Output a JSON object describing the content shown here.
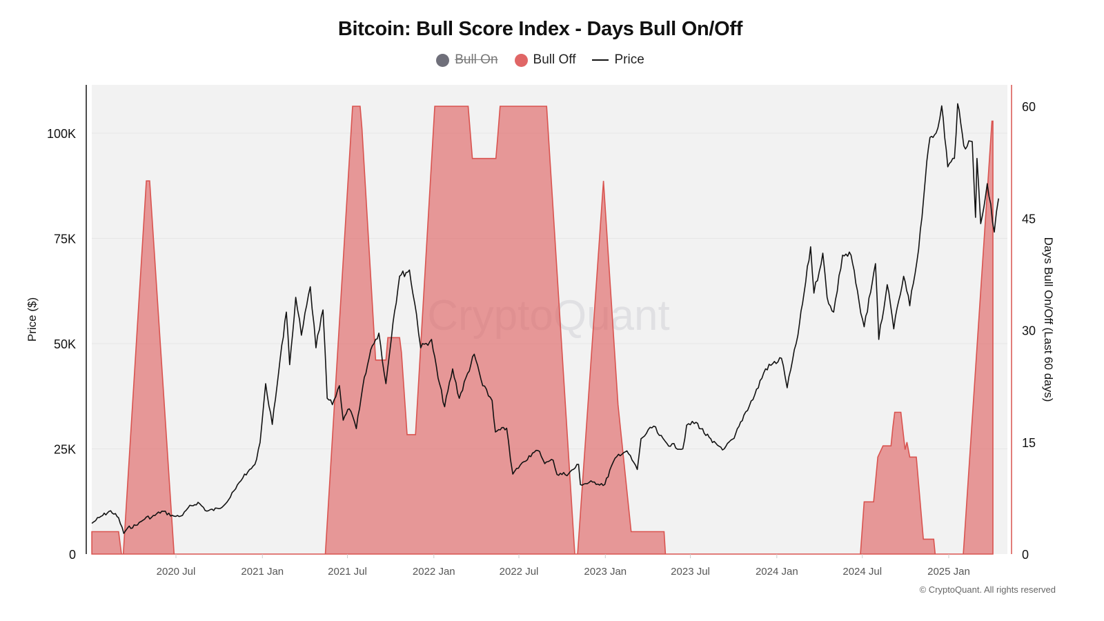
{
  "chart_data": {
    "type": "area+line",
    "title": "Bitcoin: Bull Score Index - Days Bull On/Off",
    "legend": {
      "placement": "top-center",
      "entries": [
        {
          "name": "Bull On",
          "color": "#6f6f7a",
          "hidden": true
        },
        {
          "name": "Bull Off",
          "color": "#e06666",
          "hidden": false
        },
        {
          "name": "Price",
          "color": "#111111",
          "hidden": false
        }
      ]
    },
    "y_left": {
      "label": "Price ($)",
      "range": [
        0,
        110000
      ],
      "ticks": [
        0,
        25000,
        50000,
        75000,
        100000
      ],
      "tick_labels": [
        "0",
        "25K",
        "50K",
        "75K",
        "100K"
      ]
    },
    "y_right": {
      "label": "Days Bull On/Off (Last 60 days)",
      "range": [
        0,
        62.5
      ],
      "ticks": [
        0,
        15,
        30,
        45,
        60
      ],
      "tick_labels": [
        "0",
        "15",
        "30",
        "45",
        "60"
      ],
      "color": "#d9534f"
    },
    "x_axis": {
      "range": [
        "2020-01-04",
        "2025-04-30"
      ],
      "ticks": [
        "2020-07-01",
        "2021-01-01",
        "2021-07-01",
        "2022-01-01",
        "2022-07-01",
        "2023-01-01",
        "2023-07-01",
        "2024-01-01",
        "2024-07-01",
        "2025-01-01"
      ],
      "tick_labels": [
        "2020 Jul",
        "2021 Jan",
        "2021 Jul",
        "2022 Jan",
        "2022 Jul",
        "2023 Jan",
        "2023 Jul",
        "2024 Jan",
        "2024 Jul",
        "2025 Jan"
      ]
    },
    "grid": true,
    "watermark": "CryptoQuant",
    "series": [
      {
        "name": "Bull Off",
        "axis": "right",
        "kind": "area",
        "color": "#e06666",
        "points": [
          [
            "2020-01-04",
            3
          ],
          [
            "2020-03-01",
            3
          ],
          [
            "2020-03-07",
            0
          ],
          [
            "2020-03-11",
            0
          ],
          [
            "2020-04-29",
            50
          ],
          [
            "2020-05-06",
            50
          ],
          [
            "2020-06-27",
            0
          ],
          [
            "2021-05-15",
            0
          ],
          [
            "2021-07-12",
            60
          ],
          [
            "2021-07-28",
            60
          ],
          [
            "2021-08-01",
            57
          ],
          [
            "2021-08-30",
            26
          ],
          [
            "2021-09-21",
            26
          ],
          [
            "2021-09-25",
            29
          ],
          [
            "2021-10-20",
            29
          ],
          [
            "2021-10-24",
            27
          ],
          [
            "2021-11-05",
            16
          ],
          [
            "2021-11-23",
            16
          ],
          [
            "2022-01-03",
            60
          ],
          [
            "2022-03-15",
            60
          ],
          [
            "2022-03-24",
            53
          ],
          [
            "2022-05-13",
            53
          ],
          [
            "2022-05-17",
            56
          ],
          [
            "2022-05-22",
            60
          ],
          [
            "2022-08-29",
            60
          ],
          [
            "2022-10-28",
            0
          ],
          [
            "2022-11-03",
            0
          ],
          [
            "2022-12-28",
            50
          ],
          [
            "2023-01-28",
            20
          ],
          [
            "2023-02-25",
            3
          ],
          [
            "2023-05-06",
            3
          ],
          [
            "2023-05-09",
            0
          ],
          [
            "2024-06-27",
            0
          ],
          [
            "2024-07-05",
            7
          ],
          [
            "2024-07-25",
            7
          ],
          [
            "2024-08-03",
            13
          ],
          [
            "2024-08-14",
            14.5
          ],
          [
            "2024-08-31",
            14.5
          ],
          [
            "2024-09-04",
            17
          ],
          [
            "2024-09-08",
            19
          ],
          [
            "2024-09-21",
            19
          ],
          [
            "2024-09-30",
            14
          ],
          [
            "2024-10-04",
            15
          ],
          [
            "2024-10-10",
            13
          ],
          [
            "2024-10-24",
            13
          ],
          [
            "2024-11-08",
            2
          ],
          [
            "2024-11-30",
            2
          ],
          [
            "2024-12-03",
            0
          ],
          [
            "2025-02-01",
            0
          ],
          [
            "2025-04-03",
            58
          ],
          [
            "2025-04-05",
            58
          ]
        ]
      },
      {
        "name": "Price",
        "axis": "left",
        "kind": "line",
        "color": "#111111",
        "points": [
          [
            "2020-01-04",
            7300
          ],
          [
            "2020-01-20",
            8700
          ],
          [
            "2020-02-13",
            10300
          ],
          [
            "2020-03-01",
            8600
          ],
          [
            "2020-03-12",
            4900
          ],
          [
            "2020-03-20",
            6200
          ],
          [
            "2020-04-10",
            6900
          ],
          [
            "2020-04-29",
            8800
          ],
          [
            "2020-05-10",
            8700
          ],
          [
            "2020-06-01",
            10200
          ],
          [
            "2020-06-27",
            9000
          ],
          [
            "2020-07-15",
            9200
          ],
          [
            "2020-07-27",
            11000
          ],
          [
            "2020-08-17",
            12300
          ],
          [
            "2020-09-05",
            10200
          ],
          [
            "2020-09-30",
            10800
          ],
          [
            "2020-10-21",
            12900
          ],
          [
            "2020-11-05",
            15500
          ],
          [
            "2020-11-24",
            19000
          ],
          [
            "2020-12-01",
            19500
          ],
          [
            "2020-12-16",
            21300
          ],
          [
            "2020-12-27",
            26500
          ],
          [
            "2021-01-08",
            40500
          ],
          [
            "2021-01-22",
            30800
          ],
          [
            "2021-02-08",
            46500
          ],
          [
            "2021-02-21",
            57500
          ],
          [
            "2021-02-28",
            45000
          ],
          [
            "2021-03-13",
            61000
          ],
          [
            "2021-03-25",
            52000
          ],
          [
            "2021-04-13",
            63500
          ],
          [
            "2021-04-25",
            49000
          ],
          [
            "2021-05-10",
            58000
          ],
          [
            "2021-05-19",
            37000
          ],
          [
            "2021-05-30",
            35500
          ],
          [
            "2021-06-14",
            40000
          ],
          [
            "2021-06-22",
            31800
          ],
          [
            "2021-07-05",
            34500
          ],
          [
            "2021-07-20",
            29800
          ],
          [
            "2021-08-06",
            42000
          ],
          [
            "2021-08-23",
            49500
          ],
          [
            "2021-09-06",
            52500
          ],
          [
            "2021-09-21",
            40500
          ],
          [
            "2021-10-06",
            55000
          ],
          [
            "2021-10-20",
            66000
          ],
          [
            "2021-11-10",
            67500
          ],
          [
            "2021-11-25",
            57000
          ],
          [
            "2021-12-04",
            49000
          ],
          [
            "2021-12-27",
            51000
          ],
          [
            "2022-01-10",
            41800
          ],
          [
            "2022-01-24",
            35000
          ],
          [
            "2022-02-10",
            44000
          ],
          [
            "2022-02-24",
            37000
          ],
          [
            "2022-03-28",
            47500
          ],
          [
            "2022-04-15",
            40000
          ],
          [
            "2022-05-05",
            36500
          ],
          [
            "2022-05-12",
            29000
          ],
          [
            "2022-06-05",
            29900
          ],
          [
            "2022-06-13",
            22500
          ],
          [
            "2022-06-18",
            19000
          ],
          [
            "2022-07-08",
            21700
          ],
          [
            "2022-07-30",
            24000
          ],
          [
            "2022-08-14",
            24400
          ],
          [
            "2022-08-25",
            21500
          ],
          [
            "2022-09-12",
            22300
          ],
          [
            "2022-09-20",
            18900
          ],
          [
            "2022-10-15",
            19100
          ],
          [
            "2022-11-05",
            21300
          ],
          [
            "2022-11-09",
            16500
          ],
          [
            "2022-12-05",
            17100
          ],
          [
            "2022-12-31",
            16550
          ],
          [
            "2023-01-14",
            20900
          ],
          [
            "2023-01-29",
            23700
          ],
          [
            "2023-02-16",
            24500
          ],
          [
            "2023-03-10",
            20100
          ],
          [
            "2023-03-18",
            27400
          ],
          [
            "2023-04-14",
            30400
          ],
          [
            "2023-04-26",
            28200
          ],
          [
            "2023-05-12",
            26300
          ],
          [
            "2023-06-15",
            25000
          ],
          [
            "2023-06-23",
            30600
          ],
          [
            "2023-07-13",
            31300
          ],
          [
            "2023-08-17",
            26500
          ],
          [
            "2023-09-11",
            25000
          ],
          [
            "2023-10-02",
            27500
          ],
          [
            "2023-10-23",
            33000
          ],
          [
            "2023-11-15",
            37800
          ],
          [
            "2023-12-08",
            44000
          ],
          [
            "2024-01-11",
            46500
          ],
          [
            "2024-01-23",
            39500
          ],
          [
            "2024-02-15",
            52000
          ],
          [
            "2024-02-28",
            62000
          ],
          [
            "2024-03-13",
            73000
          ],
          [
            "2024-03-20",
            62000
          ],
          [
            "2024-04-08",
            71500
          ],
          [
            "2024-04-17",
            61000
          ],
          [
            "2024-05-01",
            57500
          ],
          [
            "2024-05-20",
            71000
          ],
          [
            "2024-06-07",
            71000
          ],
          [
            "2024-06-24",
            60000
          ],
          [
            "2024-07-05",
            54000
          ],
          [
            "2024-07-29",
            69000
          ],
          [
            "2024-08-05",
            51000
          ],
          [
            "2024-08-23",
            64000
          ],
          [
            "2024-09-06",
            53500
          ],
          [
            "2024-09-27",
            66000
          ],
          [
            "2024-10-10",
            59000
          ],
          [
            "2024-10-29",
            72500
          ],
          [
            "2024-11-12",
            89000
          ],
          [
            "2024-11-22",
            99000
          ],
          [
            "2024-12-05",
            100000
          ],
          [
            "2024-12-17",
            106500
          ],
          [
            "2024-12-30",
            92000
          ],
          [
            "2025-01-13",
            94000
          ],
          [
            "2025-01-20",
            107000
          ],
          [
            "2025-02-02",
            97000
          ],
          [
            "2025-02-20",
            98000
          ],
          [
            "2025-02-27",
            80000
          ],
          [
            "2025-03-02",
            94000
          ],
          [
            "2025-03-10",
            78500
          ],
          [
            "2025-03-24",
            88000
          ],
          [
            "2025-04-08",
            76500
          ],
          [
            "2025-04-17",
            84500
          ]
        ]
      }
    ]
  },
  "footer": {
    "copyright": "© CryptoQuant. All rights reserved"
  }
}
